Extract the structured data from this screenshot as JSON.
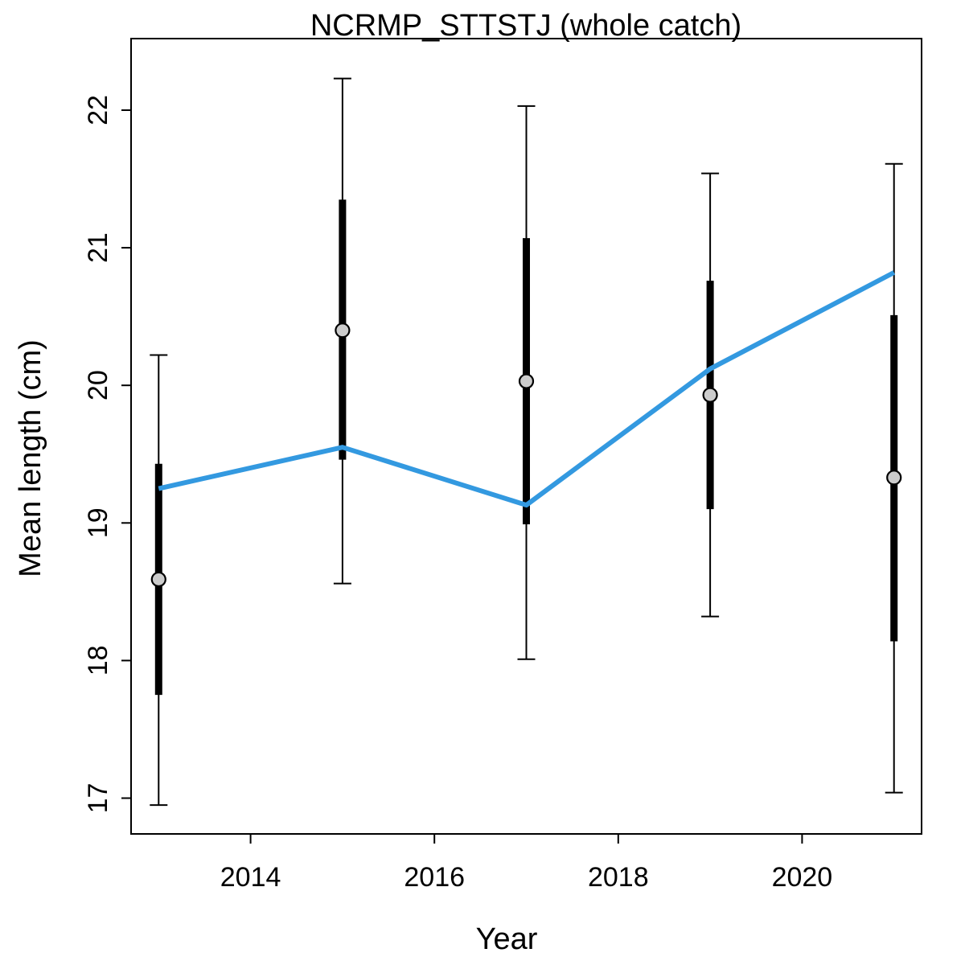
{
  "chart_data": {
    "type": "line",
    "title": "NCRMP_STTSTJ (whole catch)",
    "xlabel": "Year",
    "ylabel": "Mean length (cm)",
    "xlim": [
      2012.7,
      2021.3
    ],
    "ylim": [
      16.74,
      22.52
    ],
    "x_ticks": [
      2014,
      2016,
      2018,
      2020
    ],
    "y_ticks": [
      17,
      18,
      19,
      20,
      21,
      22
    ],
    "grid": false,
    "legend": "none",
    "observed": {
      "x": [
        2013,
        2015,
        2017,
        2019,
        2021
      ],
      "mean": [
        18.59,
        20.4,
        20.03,
        19.93,
        19.33
      ],
      "inner_low": [
        17.75,
        19.46,
        18.99,
        19.1,
        18.14
      ],
      "inner_high": [
        19.43,
        21.35,
        21.07,
        20.76,
        20.51
      ],
      "outer_low": [
        16.95,
        18.56,
        18.01,
        18.32,
        17.04
      ],
      "outer_high": [
        20.22,
        22.23,
        22.03,
        21.54,
        21.61
      ]
    },
    "expected": {
      "x": [
        2013,
        2015,
        2017,
        2019,
        2021
      ],
      "values": [
        19.25,
        19.55,
        19.13,
        20.12,
        20.82
      ]
    },
    "colors": {
      "expected_line": "#3399e0",
      "point_fill": "#cccccc",
      "error_bar": "#000000"
    }
  }
}
